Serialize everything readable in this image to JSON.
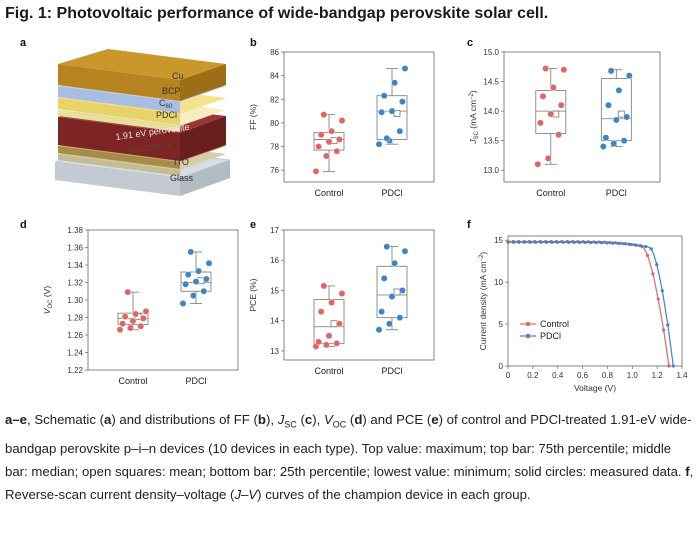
{
  "figure": {
    "title": "Fig. 1: Photovoltaic performance of wide-bandgap perovskite solar cell.",
    "panel_labels": [
      "a",
      "b",
      "c",
      "d",
      "e",
      "f"
    ]
  },
  "schematic": {
    "layers": [
      "Cu",
      "BCP",
      "C60",
      "PDCl",
      "1.91 eV perovskite",
      "MeO-2PACz",
      "ITO",
      "Glass"
    ],
    "colors": {
      "Cu": "#c9972c",
      "BCP": "#b8c9e6",
      "C60": "#f3e38e",
      "PDCl": "#f6f0b0",
      "perovskite": "#8a2a2a",
      "MeO": "#cdb16a",
      "ITO": "#d4c9a8",
      "Glass": "#cfd6dd"
    }
  },
  "chart_data": [
    {
      "id": "b",
      "type": "box",
      "ylabel": "FF (%)",
      "ylim": [
        75,
        86
      ],
      "yticks": [
        76,
        78,
        80,
        82,
        84,
        86
      ],
      "categories": [
        "Control",
        "PDCl"
      ],
      "series": [
        {
          "name": "Control",
          "color": "#e06666",
          "min": 75.9,
          "q1": 77.7,
          "median": 78.6,
          "mean": 78.5,
          "q3": 79.2,
          "max": 80.7,
          "points": [
            75.9,
            77.2,
            77.6,
            78.0,
            78.4,
            78.6,
            79.0,
            79.3,
            80.2,
            80.7
          ]
        },
        {
          "name": "PDCl",
          "color": "#3d85c6",
          "min": 78.2,
          "q1": 78.6,
          "median": 81.0,
          "mean": 80.8,
          "q3": 82.3,
          "max": 84.6,
          "points": [
            78.2,
            78.5,
            79.3,
            80.9,
            81.0,
            81.8,
            82.3,
            83.4,
            84.6,
            78.7
          ]
        }
      ]
    },
    {
      "id": "c",
      "type": "box",
      "ylabel": "JSC (mA cm−2)",
      "ylim": [
        12.8,
        15.0
      ],
      "yticks": [
        13.0,
        13.5,
        14.0,
        14.5,
        15.0
      ],
      "categories": [
        "Control",
        "PDCl"
      ],
      "series": [
        {
          "name": "Control",
          "color": "#e06666",
          "min": 13.1,
          "q1": 13.62,
          "median": 14.0,
          "mean": 13.95,
          "q3": 14.35,
          "max": 14.72,
          "points": [
            13.1,
            13.2,
            13.6,
            13.8,
            13.95,
            14.1,
            14.25,
            14.4,
            14.7,
            14.72
          ]
        },
        {
          "name": "PDCl",
          "color": "#3d85c6",
          "min": 13.4,
          "q1": 13.5,
          "median": 13.87,
          "mean": 13.95,
          "q3": 14.55,
          "max": 14.7,
          "points": [
            13.4,
            13.45,
            13.5,
            13.55,
            13.85,
            13.9,
            14.1,
            14.35,
            14.6,
            14.68
          ]
        }
      ]
    },
    {
      "id": "d",
      "type": "box",
      "ylabel": "VOC (V)",
      "ylim": [
        1.22,
        1.38
      ],
      "yticks": [
        1.22,
        1.24,
        1.26,
        1.28,
        1.3,
        1.32,
        1.34,
        1.36,
        1.38
      ],
      "categories": [
        "Control",
        "PDCl"
      ],
      "series": [
        {
          "name": "Control",
          "color": "#e06666",
          "min": 1.266,
          "q1": 1.272,
          "median": 1.279,
          "mean": 1.281,
          "q3": 1.285,
          "max": 1.309,
          "points": [
            1.266,
            1.268,
            1.27,
            1.273,
            1.276,
            1.279,
            1.281,
            1.284,
            1.287,
            1.309
          ]
        },
        {
          "name": "PDCl",
          "color": "#3d85c6",
          "min": 1.296,
          "q1": 1.31,
          "median": 1.32,
          "mean": 1.322,
          "q3": 1.332,
          "max": 1.355,
          "points": [
            1.296,
            1.305,
            1.31,
            1.318,
            1.321,
            1.324,
            1.329,
            1.333,
            1.342,
            1.355
          ]
        }
      ]
    },
    {
      "id": "e",
      "type": "box",
      "ylabel": "PCE (%)",
      "ylim": [
        12.7,
        17.0
      ],
      "yticks": [
        13,
        14,
        15,
        16,
        17
      ],
      "categories": [
        "Control",
        "PDCl"
      ],
      "series": [
        {
          "name": "Control",
          "color": "#e06666",
          "min": 13.15,
          "q1": 13.25,
          "median": 13.8,
          "mean": 13.9,
          "q3": 14.7,
          "max": 15.15,
          "points": [
            13.15,
            13.2,
            13.25,
            13.3,
            13.5,
            13.9,
            14.3,
            14.6,
            14.9,
            15.15
          ]
        },
        {
          "name": "PDCl",
          "color": "#3d85c6",
          "min": 13.7,
          "q1": 14.1,
          "median": 14.85,
          "mean": 14.95,
          "q3": 15.8,
          "max": 16.45,
          "points": [
            13.7,
            13.9,
            14.1,
            14.3,
            14.8,
            15.0,
            15.4,
            15.9,
            16.3,
            16.45
          ]
        }
      ]
    },
    {
      "id": "f",
      "type": "line",
      "xlabel": "Voltage (V)",
      "ylabel": "Current density (mA cm−2)",
      "xlim": [
        0,
        1.4
      ],
      "ylim": [
        0,
        15.5
      ],
      "xticks": [
        0,
        0.2,
        0.4,
        0.6,
        0.8,
        1.0,
        1.2,
        1.4
      ],
      "yticks": [
        0,
        5,
        10,
        15
      ],
      "series": [
        {
          "name": "Control",
          "color": "#e06666",
          "jsc": 14.85,
          "voc": 1.295,
          "knee": 1.08
        },
        {
          "name": "PDCl",
          "color": "#3d85c6",
          "jsc": 14.75,
          "voc": 1.33,
          "knee": 1.14
        }
      ]
    }
  ],
  "caption": {
    "lead": "a–e",
    "t1": ", Schematic (",
    "a": "a",
    "t2": ") and distributions of FF (",
    "b": "b",
    "t3": "), ",
    "jsc": "J",
    "jsc_sub": "SC",
    "t4": " (",
    "c": "c",
    "t5": "), ",
    "voc": "V",
    "voc_sub": "OC",
    "t6": " (",
    "d": "d",
    "t7": ") and PCE (",
    "e": "e",
    "t8": ") of control and PDCl-treated 1.91-eV wide-bandgap perovskite p–i–n devices (10 devices in each type). Top value: maximum; top bar: 75th percentile; middle bar: median; open squares: mean; bottom bar: 25th percentile; lowest value: minimum; solid circles: measured data. ",
    "f": "f",
    "t9": ", Reverse-scan current density–voltage (",
    "jv": "J–V",
    "t10": ") curves of the champion device in each group."
  }
}
